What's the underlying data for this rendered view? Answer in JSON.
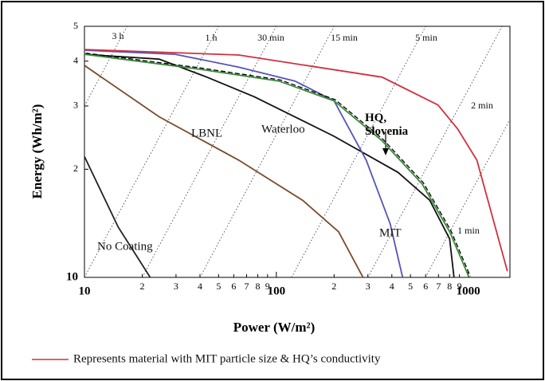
{
  "chart_data": {
    "type": "line",
    "x_label": "Power (W/m²)",
    "y_label": "Energy (Wh/m²)",
    "log_x": true,
    "log_y": true,
    "xlim": [
      10,
      1650
    ],
    "ylim": [
      10,
      50
    ],
    "xticks": [
      10,
      {
        "value": 20,
        "label": "2"
      },
      {
        "value": 30,
        "label": "3"
      },
      {
        "value": 40,
        "label": "4"
      },
      {
        "value": 50,
        "label": "5"
      },
      {
        "value": 60,
        "label": "6"
      },
      {
        "value": 70,
        "label": "7"
      },
      {
        "value": 80,
        "label": "8"
      },
      {
        "value": 90,
        "label": "9"
      },
      100,
      {
        "value": 200,
        "label": "2"
      },
      {
        "value": 300,
        "label": "3"
      },
      {
        "value": 400,
        "label": "4"
      },
      {
        "value": 500,
        "label": "5"
      },
      {
        "value": 600,
        "label": "6"
      },
      {
        "value": 700,
        "label": "7"
      },
      {
        "value": 800,
        "label": "8"
      },
      {
        "value": 900,
        "label": "9"
      },
      1000
    ],
    "yticks": [
      10,
      {
        "value": 20,
        "label": "2"
      },
      {
        "value": 30,
        "label": "3"
      },
      {
        "value": 40,
        "label": "4"
      },
      {
        "value": 50,
        "label": "5"
      }
    ],
    "time_lines": [
      {
        "label": "3 h",
        "hours": 3
      },
      {
        "label": "1 h",
        "hours": 1
      },
      {
        "label": "30 min",
        "hours": 0.5
      },
      {
        "label": "15 min",
        "hours": 0.25
      },
      {
        "label": "5 min",
        "hours": 0.0833
      },
      {
        "label": "2 min",
        "hours": 0.0333
      },
      {
        "label": "1 min",
        "hours": 0.0167
      }
    ],
    "series": [
      {
        "name": "No Coating",
        "color": "#222222",
        "x": [
          10,
          15,
          22
        ],
        "values": [
          21.7,
          13.8,
          10
        ]
      },
      {
        "name": "LBNL",
        "color": "#7a4a2a",
        "x": [
          10,
          24.5,
          63.7,
          137,
          211,
          283
        ],
        "values": [
          38.9,
          28,
          21.2,
          16.4,
          13.4,
          10
        ]
      },
      {
        "name": "Waterloo",
        "color": "#111111",
        "x": [
          10,
          24.5,
          43.5,
          77,
          200,
          431,
          630,
          800,
          843
        ],
        "values": [
          41.8,
          40.5,
          36.1,
          31.8,
          24.7,
          19.6,
          16.4,
          12.8,
          10
        ]
      },
      {
        "name": "MIT",
        "color": "#5555b5",
        "x": [
          10,
          29.7,
          63.7,
          125,
          200,
          294,
          392,
          455
        ],
        "values": [
          42.9,
          41.8,
          38.5,
          35.2,
          31,
          21.2,
          14.1,
          10
        ]
      },
      {
        "name": "HQ, Slovenia",
        "color": "#3a8a3a",
        "x": [
          10,
          39.5,
          103,
          200,
          356,
          575,
          800,
          1010
        ],
        "values": [
          41.8,
          38,
          35.2,
          31,
          24,
          18.2,
          13.4,
          10
        ]
      },
      {
        "name": "Represents material with MIT particle size & HQ’s conductivity",
        "color": "#d03040",
        "x": [
          10,
          63.7,
          356,
          696,
          880,
          1110,
          1600
        ],
        "values": [
          43.1,
          41.6,
          36.1,
          30.2,
          25.9,
          21.2,
          10.4
        ]
      }
    ]
  }
}
